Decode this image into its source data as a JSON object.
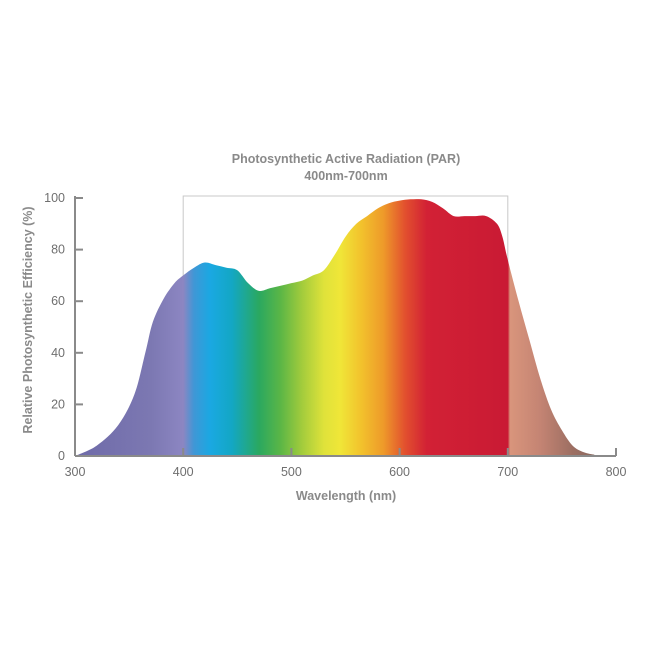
{
  "chart_data": {
    "type": "area",
    "title": "Photosynthetic Active Radiation (PAR)",
    "subtitle": "400nm-700nm",
    "xlabel": "Wavelength (nm)",
    "ylabel": "Relative Photosynthetic Efficiency (%)",
    "xlim": [
      300,
      800
    ],
    "ylim": [
      0,
      100
    ],
    "xticks": [
      "300",
      "400",
      "500",
      "600",
      "700",
      "800"
    ],
    "yticks": [
      "0",
      "20",
      "40",
      "60",
      "80",
      "100"
    ],
    "par_range": [
      400,
      700
    ],
    "grid": false,
    "series": [
      {
        "x": [
          300,
          320,
          340,
          355,
          365,
          372,
          382,
          392,
          400,
          410,
          420,
          430,
          440,
          450,
          460,
          470,
          480,
          490,
          500,
          510,
          520,
          530,
          540,
          550,
          560,
          570,
          580,
          590,
          600,
          610,
          620,
          630,
          640,
          650,
          660,
          670,
          680,
          690,
          695,
          700,
          710,
          720,
          730,
          740,
          750,
          760,
          770,
          780
        ],
        "y": [
          0,
          4,
          12,
          24,
          40,
          52,
          61,
          67,
          70,
          73,
          75,
          74,
          73,
          72,
          67,
          64,
          65,
          66,
          67,
          68,
          70,
          72,
          78,
          85,
          90,
          93,
          96,
          98,
          99,
          99.5,
          99.5,
          98.5,
          96,
          93,
          93,
          93,
          93,
          90,
          85,
          76,
          60,
          45,
          30,
          18,
          10,
          4,
          1.5,
          0.5
        ]
      }
    ],
    "gradient_stops": [
      {
        "nm": 300,
        "color": "#6e6aa8"
      },
      {
        "nm": 370,
        "color": "#7c78b2"
      },
      {
        "nm": 400,
        "color": "#8c86c2"
      },
      {
        "nm": 410,
        "color": "#3f97d6"
      },
      {
        "nm": 425,
        "color": "#1aa8e2"
      },
      {
        "nm": 445,
        "color": "#13a7c4"
      },
      {
        "nm": 470,
        "color": "#2aa860"
      },
      {
        "nm": 490,
        "color": "#5bb646"
      },
      {
        "nm": 510,
        "color": "#a3cc3c"
      },
      {
        "nm": 530,
        "color": "#dfe23a"
      },
      {
        "nm": 545,
        "color": "#f0e638"
      },
      {
        "nm": 565,
        "color": "#f2c12c"
      },
      {
        "nm": 585,
        "color": "#ee9a2a"
      },
      {
        "nm": 605,
        "color": "#e2502e"
      },
      {
        "nm": 625,
        "color": "#d22135"
      },
      {
        "nm": 700,
        "color": "#c91a34"
      },
      {
        "nm": 702,
        "color": "#d9957c"
      },
      {
        "nm": 730,
        "color": "#c48473"
      },
      {
        "nm": 760,
        "color": "#9c6e62"
      },
      {
        "nm": 780,
        "color": "#8a6a60"
      }
    ],
    "colors": {
      "axis": "#8a8a8a",
      "par_box": "#c9c9c9",
      "text": "#8a8a8a"
    }
  }
}
